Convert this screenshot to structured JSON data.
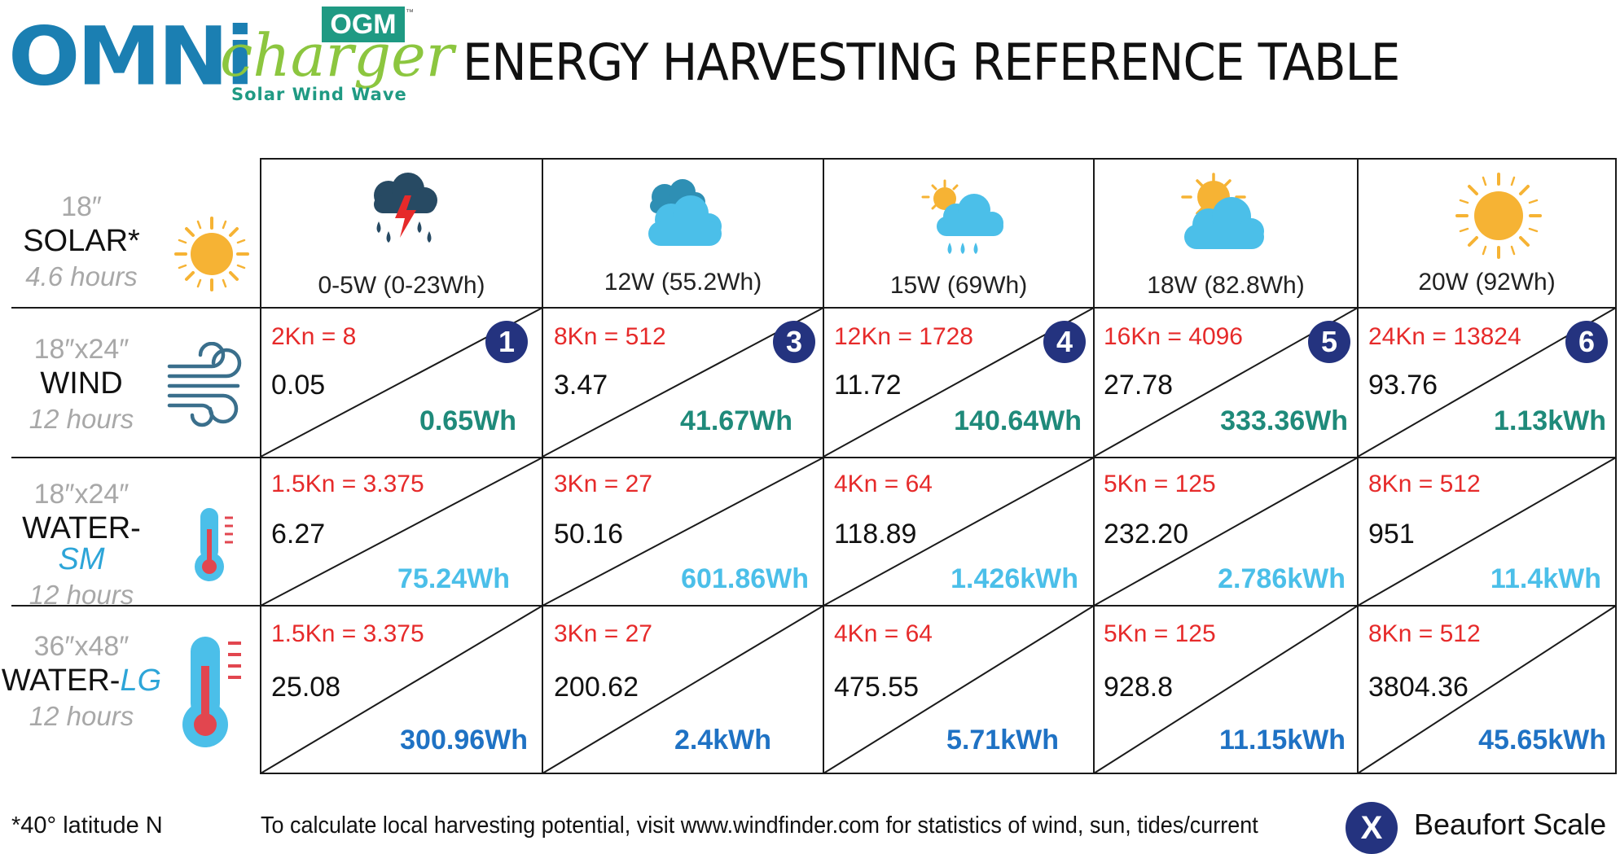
{
  "logo": {
    "omni": "OMNi",
    "charger": "charger",
    "ogm": "OGM",
    "tm": "™",
    "tagline": "Solar Wind Wave"
  },
  "title": "ENERGY HARVESTING REFERENCE TABLE",
  "colors": {
    "brand_blue": "#1b7fb2",
    "brand_green": "#8cc63f",
    "ogm_teal": "#1f9a83",
    "knots_red": "#e62a2a",
    "wind_total_teal": "#1f8a7a",
    "water_sm_total": "#4bbfe9",
    "water_lg_total": "#1f72c4",
    "beaufort_navy": "#24337f"
  },
  "rows": {
    "solar": {
      "size": "18″",
      "name": "SOLAR*",
      "hours": "4.6 hours",
      "icon": "sun-icon"
    },
    "wind": {
      "size": "18″x24″",
      "name": "WIND",
      "hours": "12 hours",
      "icon": "wind-icon"
    },
    "water_sm": {
      "size": "18″x24″",
      "name": "WATER-",
      "name_accent": "SM",
      "hours": "12 hours",
      "icon": "thermometer-small-icon"
    },
    "water_lg": {
      "size": "36″x48″",
      "name": "WATER-",
      "name_accent": "LG",
      "hours": "12 hours",
      "icon": "thermometer-large-icon"
    }
  },
  "columns": [
    {
      "weather_icon": "storm-icon",
      "solar": "0-5W (0-23Wh)",
      "beaufort": "1",
      "wind": {
        "knots": "2Kn = 8",
        "watts": "0.05",
        "total": "0.65Wh"
      },
      "water_sm": {
        "knots": "1.5Kn = 3.375",
        "watts": "6.27",
        "total": "75.24Wh"
      },
      "water_lg": {
        "knots": "1.5Kn = 3.375",
        "watts": "25.08",
        "total": "300.96Wh"
      }
    },
    {
      "weather_icon": "cloudy-icon",
      "solar": "12W (55.2Wh)",
      "beaufort": "3",
      "wind": {
        "knots": "8Kn = 512",
        "watts": "3.47",
        "total": "41.67Wh"
      },
      "water_sm": {
        "knots": "3Kn = 27",
        "watts": "50.16",
        "total": "601.86Wh"
      },
      "water_lg": {
        "knots": "3Kn = 27",
        "watts": "200.62",
        "total": "2.4kWh"
      }
    },
    {
      "weather_icon": "sun-rain-icon",
      "solar": "15W (69Wh)",
      "beaufort": "4",
      "wind": {
        "knots": "12Kn = 1728",
        "watts": "11.72",
        "total": "140.64Wh"
      },
      "water_sm": {
        "knots": "4Kn = 64",
        "watts": "118.89",
        "total": "1.426kWh"
      },
      "water_lg": {
        "knots": "4Kn = 64",
        "watts": "475.55",
        "total": "5.71kWh"
      }
    },
    {
      "weather_icon": "partly-cloudy-icon",
      "solar": "18W (82.8Wh)",
      "beaufort": "5",
      "wind": {
        "knots": "16Kn = 4096",
        "watts": "27.78",
        "total": "333.36Wh"
      },
      "water_sm": {
        "knots": "5Kn = 125",
        "watts": "232.20",
        "total": "2.786kWh"
      },
      "water_lg": {
        "knots": "5Kn = 125",
        "watts": "928.8",
        "total": "11.15kWh"
      }
    },
    {
      "weather_icon": "sunny-icon",
      "solar": "20W (92Wh)",
      "beaufort": "6",
      "wind": {
        "knots": "24Kn = 13824",
        "watts": "93.76",
        "total": "1.13kWh"
      },
      "water_sm": {
        "knots": "8Kn = 512",
        "watts": "951",
        "total": "11.4kWh"
      },
      "water_lg": {
        "knots": "8Kn = 512",
        "watts": "3804.36",
        "total": "45.65kWh"
      }
    }
  ],
  "footer": {
    "latitude_note": "*40° latitude N",
    "calc_note": "To calculate local harvesting potential, visit www.windfinder.com for statistics of wind, sun, tides/current",
    "legend_symbol": "X",
    "legend_label": "Beaufort Scale"
  }
}
